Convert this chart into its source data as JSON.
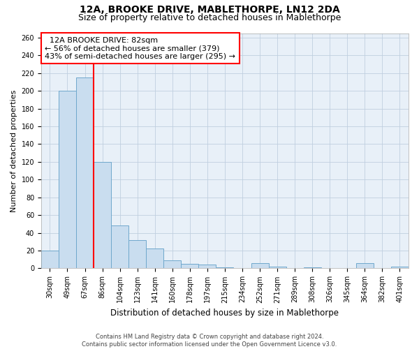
{
  "title": "12A, BROOKE DRIVE, MABLETHORPE, LN12 2DA",
  "subtitle": "Size of property relative to detached houses in Mablethorpe",
  "xlabel": "Distribution of detached houses by size in Mablethorpe",
  "ylabel": "Number of detached properties",
  "bar_color": "#c9ddef",
  "bar_edge_color": "#6fa8cc",
  "grid_color": "#c0cfe0",
  "background_color": "#e8f0f8",
  "categories": [
    "30sqm",
    "49sqm",
    "67sqm",
    "86sqm",
    "104sqm",
    "123sqm",
    "141sqm",
    "160sqm",
    "178sqm",
    "197sqm",
    "215sqm",
    "234sqm",
    "252sqm",
    "271sqm",
    "289sqm",
    "308sqm",
    "326sqm",
    "345sqm",
    "364sqm",
    "382sqm",
    "401sqm"
  ],
  "values": [
    20,
    200,
    215,
    120,
    48,
    32,
    22,
    9,
    5,
    4,
    1,
    0,
    6,
    2,
    0,
    1,
    0,
    0,
    6,
    0,
    2
  ],
  "property_label": "12A BROOKE DRIVE: 82sqm",
  "pct_smaller": 56,
  "n_smaller": 379,
  "pct_larger": 43,
  "n_larger": 295,
  "ylim": [
    0,
    265
  ],
  "yticks": [
    0,
    20,
    40,
    60,
    80,
    100,
    120,
    140,
    160,
    180,
    200,
    220,
    240,
    260
  ],
  "footnote": "Contains HM Land Registry data © Crown copyright and database right 2024.\nContains public sector information licensed under the Open Government Licence v3.0.",
  "title_fontsize": 10,
  "subtitle_fontsize": 9,
  "xlabel_fontsize": 8.5,
  "ylabel_fontsize": 8,
  "tick_fontsize": 7,
  "annotation_fontsize": 8,
  "footnote_fontsize": 6
}
